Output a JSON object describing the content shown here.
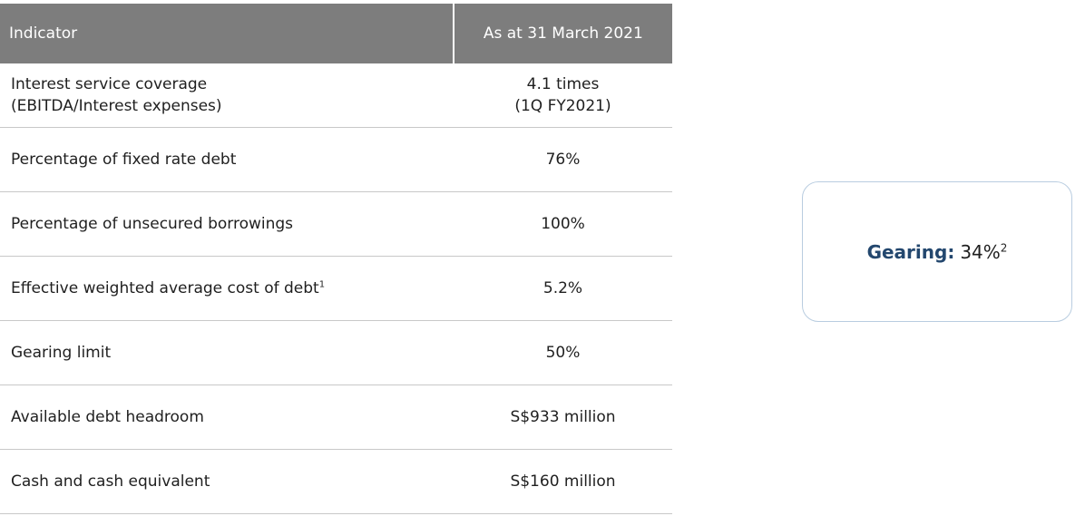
{
  "table": {
    "header": {
      "indicator": "Indicator",
      "date": "As at 31 March 2021"
    },
    "rows": [
      {
        "indicator_line1": "Interest service coverage",
        "indicator_line2": "(EBITDA/Interest expenses)",
        "value_line1": "4.1 times",
        "value_line2": "(1Q FY2021)"
      },
      {
        "indicator": "Percentage of fixed rate debt",
        "value": "76%"
      },
      {
        "indicator": "Percentage of unsecured borrowings",
        "value": "100%"
      },
      {
        "indicator": "Effective weighted average cost of debt",
        "footnote": "1",
        "value": "5.2%"
      },
      {
        "indicator": "Gearing limit",
        "value": "50%"
      },
      {
        "indicator": "Available debt headroom",
        "value": "S$933 million"
      },
      {
        "indicator": "Cash and cash equivalent",
        "value": "S$160 million"
      }
    ]
  },
  "gearing_card": {
    "label": "Gearing:",
    "value": "34%",
    "footnote": "2",
    "label_color": "#23476e"
  }
}
